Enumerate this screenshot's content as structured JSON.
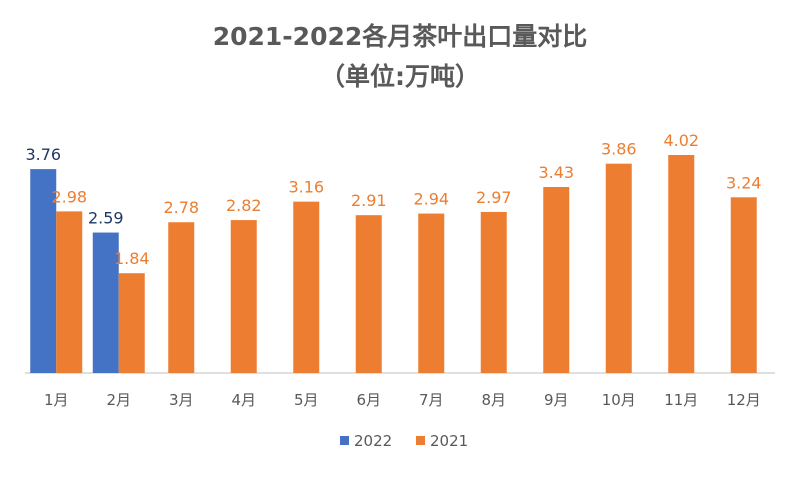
{
  "colors": {
    "series_2022": "#4472C4",
    "series_2021": "#ED7D31",
    "label_2022": "#1F3864",
    "label_2021": "#ED7D31",
    "axis": "#BFBFBF"
  },
  "chart_data": {
    "type": "bar",
    "title": "2021-2022各月茶叶出口量对比",
    "subtitle": "（单位:万吨）",
    "categories": [
      "1月",
      "2月",
      "3月",
      "4月",
      "5月",
      "6月",
      "7月",
      "8月",
      "9月",
      "10月",
      "11月",
      "12月"
    ],
    "series": [
      {
        "name": "2022",
        "values": [
          3.76,
          2.59,
          null,
          null,
          null,
          null,
          null,
          null,
          null,
          null,
          null,
          null
        ]
      },
      {
        "name": "2021",
        "values": [
          2.98,
          1.84,
          2.78,
          2.82,
          3.16,
          2.91,
          2.94,
          2.97,
          3.43,
          3.86,
          4.02,
          3.24
        ]
      }
    ],
    "ylim": [
      0,
      4.02
    ],
    "grid": false,
    "legend": "bottom"
  }
}
